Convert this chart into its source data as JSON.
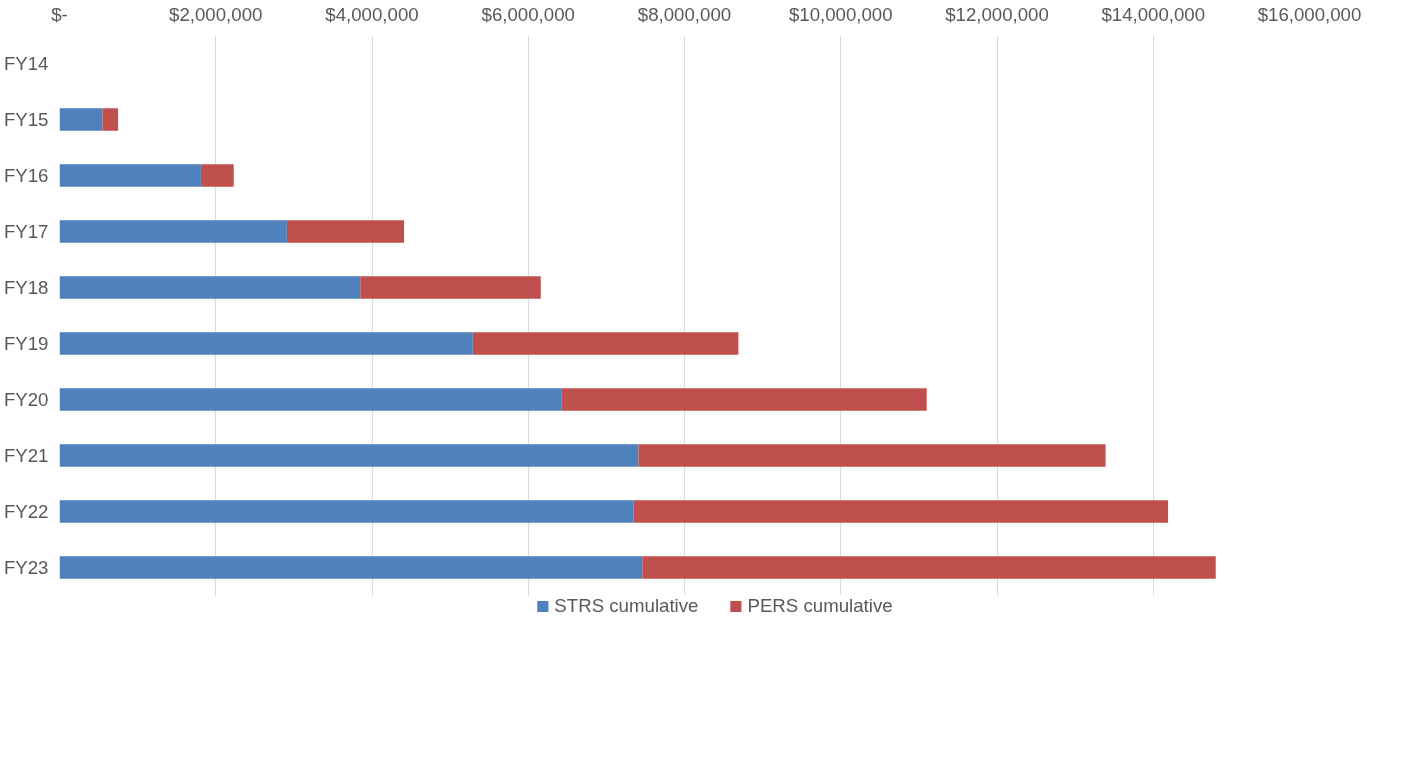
{
  "chart_data": {
    "type": "bar",
    "orientation": "horizontal",
    "stacked": true,
    "categories": [
      "FY14",
      "FY15",
      "FY16",
      "FY17",
      "FY18",
      "FY19",
      "FY20",
      "FY21",
      "FY22",
      "FY23"
    ],
    "series": [
      {
        "name": "STRS cumulative",
        "color": "#4f81bd",
        "values": [
          0,
          550000,
          1810000,
          2910000,
          3850000,
          5290000,
          6430000,
          7410000,
          7350000,
          7460000
        ]
      },
      {
        "name": "PERS cumulative",
        "color": "#c0504d",
        "values": [
          0,
          200000,
          420000,
          1500000,
          2310000,
          3400000,
          4670000,
          5980000,
          6840000,
          7340000
        ]
      }
    ],
    "xlim": [
      0,
      16000000
    ],
    "xticks": [
      {
        "value": 0,
        "label": "$-"
      },
      {
        "value": 2000000,
        "label": "$2,000,000"
      },
      {
        "value": 4000000,
        "label": "$4,000,000"
      },
      {
        "value": 6000000,
        "label": "$6,000,000"
      },
      {
        "value": 8000000,
        "label": "$8,000,000"
      },
      {
        "value": 10000000,
        "label": "$10,000,000"
      },
      {
        "value": 12000000,
        "label": "$12,000,000"
      },
      {
        "value": 14000000,
        "label": "$14,000,000"
      },
      {
        "value": 16000000,
        "label": "$16,000,000"
      }
    ],
    "grid": "x",
    "legend": "bottom"
  }
}
